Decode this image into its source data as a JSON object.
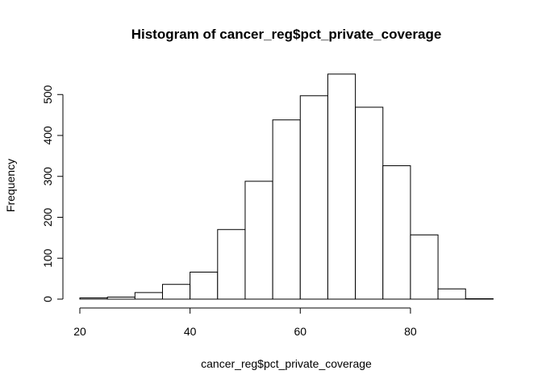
{
  "chart_data": {
    "type": "bar",
    "title": "Histogram of cancer_reg$pct_private_coverage",
    "xlabel": "cancer_reg$pct_private_coverage",
    "ylabel": "Frequency",
    "bin_edges": [
      20,
      25,
      30,
      35,
      40,
      45,
      50,
      55,
      60,
      65,
      70,
      75,
      80,
      85,
      90,
      95
    ],
    "values": [
      3,
      5,
      16,
      36,
      66,
      170,
      288,
      438,
      497,
      550,
      469,
      326,
      157,
      25,
      1
    ],
    "xlim": [
      20,
      95
    ],
    "ylim": [
      0,
      550
    ],
    "x_ticks": [
      20,
      40,
      60,
      80
    ],
    "y_ticks": [
      0,
      100,
      200,
      300,
      400,
      500
    ],
    "grid": false
  }
}
